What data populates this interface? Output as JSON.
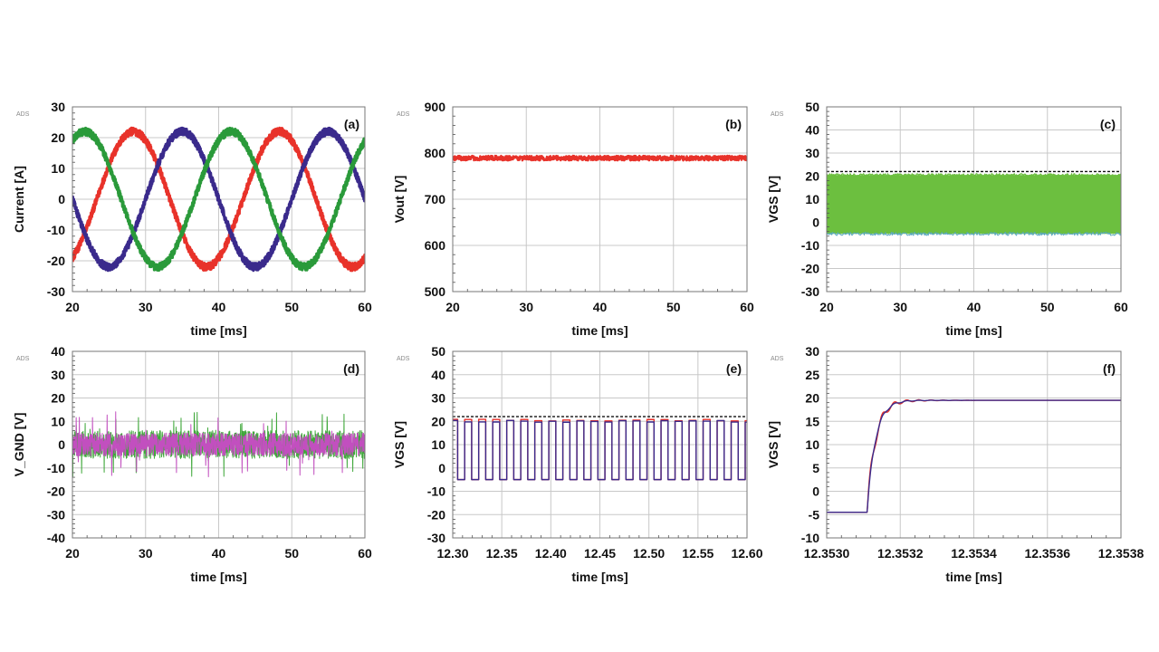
{
  "figure": {
    "panels_order": [
      "a",
      "b",
      "c",
      "d",
      "e",
      "f"
    ]
  },
  "chart_data": [
    {
      "id": "a",
      "type": "line",
      "panel_label": "(a)",
      "watermark": "ADS",
      "xlabel": "time [ms]",
      "ylabel": "Current [A]",
      "xlim": [
        20,
        60
      ],
      "ylim": [
        -30,
        30
      ],
      "xticks": [
        20,
        30,
        40,
        50,
        60
      ],
      "yticks": [
        -30,
        -20,
        -10,
        0,
        10,
        20,
        30
      ],
      "xtick_labels": [
        "20",
        "30",
        "40",
        "50",
        "60"
      ],
      "ytick_labels": [
        "-30",
        "-20",
        "-10",
        "0",
        "10",
        "20",
        "30"
      ],
      "grid": true,
      "series": [
        {
          "color": "#e8322a",
          "amplitude": 22,
          "period_ms": 20,
          "phase_deg": -60,
          "ripple": 1.2
        },
        {
          "color": "#3a2a8c",
          "amplitude": 22,
          "period_ms": 20,
          "phase_deg": -180,
          "ripple": 1.2
        },
        {
          "color": "#2a9a3a",
          "amplitude": 22,
          "period_ms": 20,
          "phase_deg": 60,
          "ripple": 1.2
        }
      ]
    },
    {
      "id": "b",
      "type": "line",
      "panel_label": "(b)",
      "watermark": "ADS",
      "xlabel": "time [ms]",
      "ylabel": "Vout [V]",
      "xlim": [
        20,
        60
      ],
      "ylim": [
        500,
        900
      ],
      "xticks": [
        20,
        30,
        40,
        50,
        60
      ],
      "yticks": [
        500,
        600,
        700,
        800,
        900
      ],
      "xtick_labels": [
        "20",
        "30",
        "40",
        "50",
        "60"
      ],
      "ytick_labels": [
        "500",
        "600",
        "700",
        "800",
        "900"
      ],
      "grid": true,
      "series": [
        {
          "color": "#e8322a",
          "level": 789,
          "ripple": 5
        }
      ]
    },
    {
      "id": "c",
      "type": "area",
      "panel_label": "(c)",
      "watermark": "ADS",
      "xlabel": "time [ms]",
      "ylabel": "VGS [V]",
      "xlim": [
        20,
        60
      ],
      "ylim": [
        -30,
        50
      ],
      "xticks": [
        20,
        30,
        40,
        50,
        60
      ],
      "yticks": [
        -30,
        -20,
        -10,
        0,
        10,
        20,
        30,
        40,
        50
      ],
      "xtick_labels": [
        "20",
        "30",
        "40",
        "50",
        "60"
      ],
      "ytick_labels": [
        "-30",
        "-20",
        "-10",
        "0",
        "10",
        "20",
        "30",
        "40",
        "50"
      ],
      "grid": true,
      "reference_line": 22,
      "series": [
        {
          "color": "#6cbf3f",
          "low": -5,
          "high": 20.5
        }
      ]
    },
    {
      "id": "d",
      "type": "line",
      "panel_label": "(d)",
      "watermark": "ADS",
      "xlabel": "time [ms]",
      "ylabel": "V_GND [V]",
      "xlim": [
        20,
        60
      ],
      "ylim": [
        -40,
        40
      ],
      "xticks": [
        20,
        30,
        40,
        50,
        60
      ],
      "yticks": [
        -40,
        -30,
        -20,
        -10,
        0,
        10,
        20,
        30,
        40
      ],
      "xtick_labels": [
        "20",
        "30",
        "40",
        "50",
        "60"
      ],
      "ytick_labels": [
        "-40",
        "-30",
        "-20",
        "-10",
        "0",
        "10",
        "20",
        "30",
        "40"
      ],
      "grid": true,
      "series": [
        {
          "color": "#3fa83a",
          "band": 6,
          "spike": 14
        },
        {
          "color": "#c24fbf",
          "band": 5,
          "spike": 15
        }
      ]
    },
    {
      "id": "e",
      "type": "line",
      "panel_label": "(e)",
      "watermark": "ADS",
      "xlabel": "time [ms]",
      "ylabel": "VGS [V]",
      "xlim": [
        12.3,
        12.6
      ],
      "ylim": [
        -30,
        50
      ],
      "xticks": [
        12.3,
        12.35,
        12.4,
        12.45,
        12.5,
        12.55,
        12.6
      ],
      "yticks": [
        -30,
        -20,
        -10,
        0,
        10,
        20,
        30,
        40,
        50
      ],
      "xtick_labels": [
        "12.30",
        "12.35",
        "12.40",
        "12.45",
        "12.50",
        "12.55",
        "12.60"
      ],
      "ytick_labels": [
        "-30",
        "-20",
        "-10",
        "0",
        "10",
        "20",
        "30",
        "40",
        "50"
      ],
      "grid": true,
      "reference_line": 22,
      "series": [
        {
          "color": "#e8322a",
          "high": 20.5,
          "low": -5,
          "period_ms": 0.0143,
          "duty": 0.5
        },
        {
          "color": "#3a2a8c",
          "high": 20,
          "low": -5,
          "period_ms": 0.0143,
          "duty": 0.5
        }
      ]
    },
    {
      "id": "f",
      "type": "line",
      "panel_label": "(f)",
      "watermark": "ADS",
      "xlabel": "time [ms]",
      "ylabel": "VGS [V]",
      "xlim": [
        12.353,
        12.3538
      ],
      "ylim": [
        -10,
        30
      ],
      "xticks": [
        12.353,
        12.3532,
        12.3534,
        12.3536,
        12.3538
      ],
      "yticks": [
        -10,
        -5,
        0,
        5,
        10,
        15,
        20,
        25,
        30
      ],
      "xtick_labels": [
        "12.3530",
        "12.3532",
        "12.3534",
        "12.3536",
        "12.3538"
      ],
      "ytick_labels": [
        "-10",
        "-5",
        "0",
        "5",
        "10",
        "15",
        "20",
        "25",
        "30"
      ],
      "grid": true,
      "series": [
        {
          "color": "#e8322a",
          "start_level": -4.5,
          "step_time": 12.35311,
          "final": 19.5,
          "overshoot": 1.6
        },
        {
          "color": "#3a2a8c",
          "start_level": -4.5,
          "step_time": 12.35311,
          "final": 19.5,
          "overshoot": 0.6
        }
      ]
    }
  ]
}
